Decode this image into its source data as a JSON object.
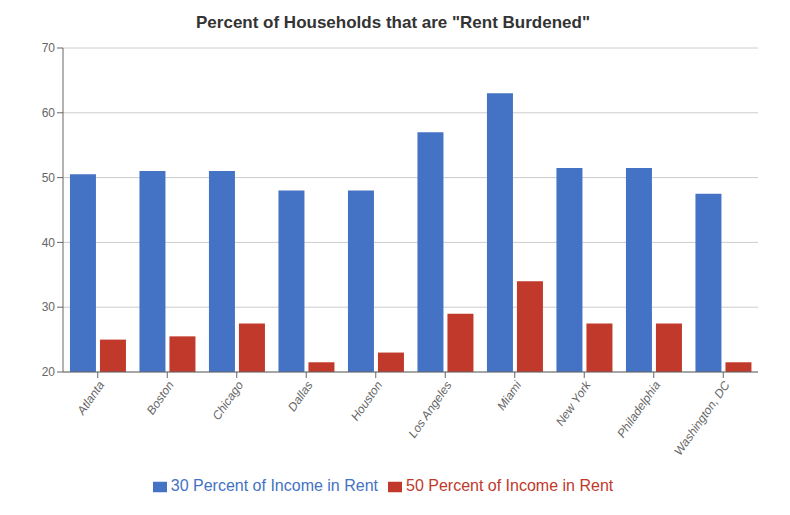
{
  "chart_data": {
    "type": "bar",
    "title": "Percent of Households that are \"Rent Burdened\"",
    "categories": [
      "Atlanta",
      "Boston",
      "Chicago",
      "Dallas",
      "Houston",
      "Los Angeles",
      "Miami",
      "New York",
      "Philadelphia",
      "Washington, DC"
    ],
    "series": [
      {
        "name": "30 Percent of Income in Rent",
        "color": "#4472C4",
        "values": [
          50.5,
          51.0,
          51.0,
          48.0,
          48.0,
          57.0,
          63.0,
          51.5,
          51.5,
          47.5
        ]
      },
      {
        "name": "50 Percent of Income in Rent",
        "color": "#C0392B",
        "values": [
          25.0,
          25.5,
          27.5,
          21.5,
          23.0,
          29.0,
          34.0,
          27.5,
          27.5,
          21.5
        ]
      }
    ],
    "ylim": [
      20,
      70
    ],
    "yticks": [
      20,
      30,
      40,
      50,
      60,
      70
    ],
    "grid": true,
    "legend": "bottom"
  }
}
